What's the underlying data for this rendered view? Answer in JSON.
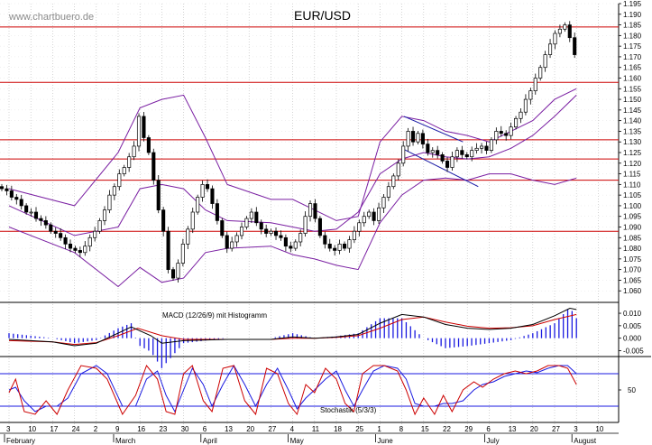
{
  "chart_data": [
    {
      "type": "candlestick",
      "title": "EUR/USD",
      "watermark": "www.chartbuero.de",
      "ylim": [
        1.055,
        1.195
      ],
      "y_ticks": [
        "1.060",
        "1.065",
        "1.070",
        "1.075",
        "1.080",
        "1.085",
        "1.090",
        "1.095",
        "1.100",
        "1.105",
        "1.110",
        "1.115",
        "1.120",
        "1.125",
        "1.130",
        "1.135",
        "1.140",
        "1.145",
        "1.150",
        "1.155",
        "1.160",
        "1.165",
        "1.170",
        "1.175",
        "1.180",
        "1.185",
        "1.190",
        "1.195"
      ],
      "x_dates": [
        "3",
        "10",
        "17",
        "24",
        "2",
        "9",
        "16",
        "23",
        "30",
        "6",
        "13",
        "20",
        "27",
        "4",
        "11",
        "18",
        "25",
        "1",
        "8",
        "15",
        "22",
        "29",
        "6",
        "13",
        "20",
        "27",
        "3",
        "10"
      ],
      "x_months": [
        {
          "label": "February",
          "date_index": 0
        },
        {
          "label": "March",
          "date_index": 5
        },
        {
          "label": "April",
          "date_index": 9
        },
        {
          "label": "May",
          "date_index": 13
        },
        {
          "label": "June",
          "date_index": 17
        },
        {
          "label": "July",
          "date_index": 22
        },
        {
          "label": "August",
          "date_index": 26
        }
      ],
      "horizontal_levels": [
        1.184,
        1.158,
        1.131,
        1.122,
        1.112,
        1.088
      ],
      "bollinger_upper": [
        [
          0,
          1.108
        ],
        [
          3,
          1.1
        ],
        [
          5,
          1.125
        ],
        [
          6,
          1.146
        ],
        [
          7,
          1.15
        ],
        [
          8,
          1.152
        ],
        [
          9,
          1.132
        ],
        [
          10,
          1.11
        ],
        [
          12,
          1.103
        ],
        [
          13,
          1.103
        ],
        [
          14,
          1.098
        ],
        [
          15,
          1.093
        ],
        [
          16,
          1.095
        ],
        [
          17,
          1.13
        ],
        [
          18,
          1.142
        ],
        [
          19,
          1.14
        ],
        [
          20,
          1.135
        ],
        [
          21,
          1.133
        ],
        [
          22,
          1.13
        ],
        [
          23,
          1.135
        ],
        [
          24,
          1.14
        ],
        [
          25,
          1.15
        ],
        [
          26,
          1.155
        ]
      ],
      "bollinger_middle": [
        [
          0,
          1.1
        ],
        [
          3,
          1.086
        ],
        [
          5,
          1.09
        ],
        [
          6,
          1.108
        ],
        [
          7,
          1.11
        ],
        [
          8,
          1.108
        ],
        [
          9,
          1.098
        ],
        [
          10,
          1.093
        ],
        [
          12,
          1.092
        ],
        [
          13,
          1.09
        ],
        [
          14,
          1.088
        ],
        [
          15,
          1.089
        ],
        [
          16,
          1.097
        ],
        [
          17,
          1.115
        ],
        [
          18,
          1.122
        ],
        [
          19,
          1.125
        ],
        [
          20,
          1.123
        ],
        [
          21,
          1.122
        ],
        [
          22,
          1.123
        ],
        [
          23,
          1.127
        ],
        [
          24,
          1.133
        ],
        [
          25,
          1.142
        ],
        [
          26,
          1.152
        ]
      ],
      "bollinger_lower": [
        [
          0,
          1.09
        ],
        [
          3,
          1.078
        ],
        [
          5,
          1.062
        ],
        [
          6,
          1.071
        ],
        [
          7,
          1.064
        ],
        [
          8,
          1.066
        ],
        [
          9,
          1.078
        ],
        [
          10,
          1.08
        ],
        [
          12,
          1.081
        ],
        [
          13,
          1.077
        ],
        [
          14,
          1.075
        ],
        [
          15,
          1.072
        ],
        [
          16,
          1.07
        ],
        [
          17,
          1.092
        ],
        [
          18,
          1.105
        ],
        [
          19,
          1.112
        ],
        [
          20,
          1.113
        ],
        [
          21,
          1.112
        ],
        [
          22,
          1.115
        ],
        [
          23,
          1.115
        ],
        [
          24,
          1.112
        ],
        [
          25,
          1.11
        ],
        [
          26,
          1.113
        ]
      ],
      "trend_channel": {
        "upper": [
          [
            18.1,
            1.142
          ],
          [
            20.8,
            1.13
          ]
        ],
        "lower": [
          [
            18.0,
            1.127
          ],
          [
            21.5,
            1.109
          ]
        ]
      },
      "closes": [
        1.108,
        1.107,
        1.104,
        1.103,
        1.1,
        1.097,
        1.097,
        1.094,
        1.093,
        1.091,
        1.088,
        1.087,
        1.085,
        1.082,
        1.08,
        1.079,
        1.078,
        1.081,
        1.085,
        1.088,
        1.093,
        1.098,
        1.105,
        1.109,
        1.115,
        1.118,
        1.123,
        1.128,
        1.142,
        1.132,
        1.125,
        1.112,
        1.098,
        1.088,
        1.07,
        1.066,
        1.073,
        1.082,
        1.089,
        1.097,
        1.104,
        1.11,
        1.108,
        1.101,
        1.093,
        1.086,
        1.08,
        1.083,
        1.086,
        1.09,
        1.094,
        1.097,
        1.092,
        1.089,
        1.087,
        1.088,
        1.086,
        1.085,
        1.081,
        1.08,
        1.083,
        1.087,
        1.095,
        1.101,
        1.094,
        1.086,
        1.082,
        1.08,
        1.079,
        1.082,
        1.08,
        1.084,
        1.088,
        1.092,
        1.095,
        1.097,
        1.093,
        1.099,
        1.104,
        1.109,
        1.114,
        1.12,
        1.128,
        1.135,
        1.13,
        1.134,
        1.129,
        1.125,
        1.126,
        1.124,
        1.121,
        1.118,
        1.123,
        1.126,
        1.124,
        1.123,
        1.126,
        1.127,
        1.128,
        1.126,
        1.131,
        1.135,
        1.134,
        1.133,
        1.137,
        1.141,
        1.144,
        1.15,
        1.154,
        1.16,
        1.165,
        1.171,
        1.176,
        1.181,
        1.183,
        1.185,
        1.179,
        1.171
      ],
      "macd": {
        "label": "MACD (12/26/9) mit Histogramm",
        "y_ticks": [
          "0.010",
          "0.005",
          "0.000",
          "-0.005"
        ],
        "ylim": [
          -0.007,
          0.014
        ],
        "macd_line": [
          [
            0,
            -0.0005
          ],
          [
            2,
            -0.0015
          ],
          [
            3,
            -0.003
          ],
          [
            4,
            -0.002
          ],
          [
            5,
            0.002
          ],
          [
            5.6,
            0.0045
          ],
          [
            6.5,
            0.001
          ],
          [
            7,
            -0.002
          ],
          [
            8,
            -0.001
          ],
          [
            10,
            -0.0005
          ],
          [
            12,
            -0.0005
          ],
          [
            13,
            0.0005
          ],
          [
            14,
            0.0
          ],
          [
            15,
            0.0005
          ],
          [
            16,
            0.0015
          ],
          [
            17,
            0.006
          ],
          [
            18,
            0.0095
          ],
          [
            19,
            0.0085
          ],
          [
            20,
            0.0055
          ],
          [
            21,
            0.004
          ],
          [
            22,
            0.0035
          ],
          [
            23,
            0.004
          ],
          [
            24,
            0.0055
          ],
          [
            25,
            0.009
          ],
          [
            25.7,
            0.012
          ],
          [
            26,
            0.0115
          ]
        ],
        "signal_line": [
          [
            0,
            -0.001
          ],
          [
            2,
            -0.0015
          ],
          [
            3,
            -0.0025
          ],
          [
            4,
            -0.0018
          ],
          [
            5,
            0.001
          ],
          [
            5.9,
            0.004
          ],
          [
            7,
            0.001
          ],
          [
            8,
            -0.0005
          ],
          [
            10,
            -0.0005
          ],
          [
            12,
            -0.0005
          ],
          [
            13,
            0.0
          ],
          [
            14,
            0.0
          ],
          [
            15,
            0.0003
          ],
          [
            16,
            0.001
          ],
          [
            17,
            0.004
          ],
          [
            18,
            0.0075
          ],
          [
            19,
            0.0085
          ],
          [
            20,
            0.0065
          ],
          [
            21,
            0.0048
          ],
          [
            22,
            0.004
          ],
          [
            23,
            0.0042
          ],
          [
            24,
            0.005
          ],
          [
            25,
            0.0075
          ],
          [
            26,
            0.0095
          ]
        ]
      },
      "stochastic": {
        "label": "Stochastik (5/3/3)",
        "y_ticks": [
          "50"
        ],
        "ylim": [
          0,
          100
        ],
        "levels": [
          80,
          20
        ],
        "k_line": [
          [
            0,
            0.45
          ],
          [
            0.3,
            0.7
          ],
          [
            0.7,
            0.1
          ],
          [
            1.2,
            0.05
          ],
          [
            1.7,
            0.3
          ],
          [
            2.2,
            0.05
          ],
          [
            2.7,
            0.5
          ],
          [
            3.3,
            0.95
          ],
          [
            4,
            0.9
          ],
          [
            4.5,
            0.7
          ],
          [
            5.2,
            0.05
          ],
          [
            5.8,
            0.4
          ],
          [
            6.3,
            0.95
          ],
          [
            6.8,
            0.7
          ],
          [
            7.2,
            0.1
          ],
          [
            7.6,
            0.05
          ],
          [
            8,
            0.8
          ],
          [
            8.4,
            0.95
          ],
          [
            8.9,
            0.3
          ],
          [
            9.3,
            0.1
          ],
          [
            9.8,
            0.9
          ],
          [
            10.3,
            0.95
          ],
          [
            10.8,
            0.3
          ],
          [
            11.3,
            0.05
          ],
          [
            11.8,
            0.9
          ],
          [
            12.3,
            0.8
          ],
          [
            12.8,
            0.25
          ],
          [
            13.2,
            0.05
          ],
          [
            13.6,
            0.6
          ],
          [
            14,
            0.45
          ],
          [
            14.5,
            0.9
          ],
          [
            15,
            0.7
          ],
          [
            15.4,
            0.25
          ],
          [
            15.8,
            0.1
          ],
          [
            16.2,
            0.8
          ],
          [
            16.7,
            0.95
          ],
          [
            17.2,
            0.95
          ],
          [
            17.8,
            0.85
          ],
          [
            18.2,
            0.5
          ],
          [
            18.6,
            0.05
          ],
          [
            19,
            0.35
          ],
          [
            19.5,
            0.05
          ],
          [
            19.9,
            0.4
          ],
          [
            20.3,
            0.1
          ],
          [
            20.8,
            0.5
          ],
          [
            21.3,
            0.65
          ],
          [
            21.7,
            0.55
          ],
          [
            22.2,
            0.7
          ],
          [
            22.7,
            0.8
          ],
          [
            23.2,
            0.85
          ],
          [
            23.7,
            0.8
          ],
          [
            24.2,
            0.85
          ],
          [
            24.7,
            0.95
          ],
          [
            25.2,
            0.95
          ],
          [
            25.6,
            0.9
          ],
          [
            26,
            0.6
          ]
        ],
        "d_line": [
          [
            0,
            0.5
          ],
          [
            0.3,
            0.55
          ],
          [
            0.7,
            0.3
          ],
          [
            1.2,
            0.1
          ],
          [
            1.7,
            0.2
          ],
          [
            2.2,
            0.2
          ],
          [
            2.7,
            0.35
          ],
          [
            3.3,
            0.8
          ],
          [
            4,
            0.95
          ],
          [
            4.5,
            0.8
          ],
          [
            5.2,
            0.2
          ],
          [
            5.8,
            0.2
          ],
          [
            6.3,
            0.7
          ],
          [
            6.8,
            0.85
          ],
          [
            7.2,
            0.4
          ],
          [
            7.6,
            0.1
          ],
          [
            8,
            0.5
          ],
          [
            8.4,
            0.9
          ],
          [
            8.9,
            0.6
          ],
          [
            9.3,
            0.2
          ],
          [
            9.8,
            0.6
          ],
          [
            10.3,
            0.95
          ],
          [
            10.8,
            0.6
          ],
          [
            11.3,
            0.2
          ],
          [
            11.8,
            0.6
          ],
          [
            12.3,
            0.9
          ],
          [
            12.8,
            0.5
          ],
          [
            13.2,
            0.15
          ],
          [
            13.6,
            0.35
          ],
          [
            14,
            0.5
          ],
          [
            14.5,
            0.7
          ],
          [
            15,
            0.85
          ],
          [
            15.4,
            0.5
          ],
          [
            15.8,
            0.2
          ],
          [
            16.2,
            0.5
          ],
          [
            16.7,
            0.85
          ],
          [
            17.2,
            0.95
          ],
          [
            17.8,
            0.9
          ],
          [
            18.2,
            0.7
          ],
          [
            18.6,
            0.25
          ],
          [
            19,
            0.2
          ],
          [
            19.5,
            0.2
          ],
          [
            19.9,
            0.25
          ],
          [
            20.3,
            0.25
          ],
          [
            20.8,
            0.3
          ],
          [
            21.3,
            0.5
          ],
          [
            21.7,
            0.6
          ],
          [
            22.2,
            0.65
          ],
          [
            22.7,
            0.75
          ],
          [
            23.2,
            0.8
          ],
          [
            23.7,
            0.85
          ],
          [
            24.2,
            0.82
          ],
          [
            24.7,
            0.9
          ],
          [
            25.2,
            0.95
          ],
          [
            25.6,
            0.95
          ],
          [
            26,
            0.8
          ]
        ]
      }
    }
  ],
  "colors": {
    "background": "#ffffff",
    "levels": "#cc0000",
    "bollinger": "#7a1fa2",
    "trend_channel": "#1a1aa6",
    "candles": "#000000",
    "macd_line": "#000000",
    "signal_line": "#cc0000",
    "histogram": "#1a1ae0",
    "stoch_k": "#cc0000",
    "stoch_d": "#1a1ae0",
    "stoch_levels": "#1a1ae0"
  }
}
